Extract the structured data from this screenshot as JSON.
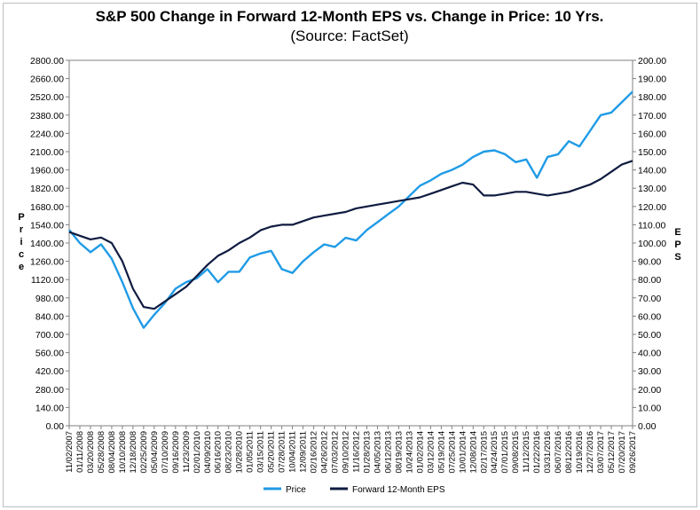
{
  "chart_data": {
    "type": "line",
    "title": "S&P 500 Change in Forward 12-Month EPS vs. Change in Price: 10 Yrs.",
    "subtitle": "(Source: FactSet)",
    "ylabel": "Price",
    "y2label": "EPS",
    "ylim": [
      0,
      2800
    ],
    "y2lim": [
      0,
      200
    ],
    "y_ticks": [
      "0.00",
      "140.00",
      "280.00",
      "420.00",
      "560.00",
      "700.00",
      "840.00",
      "980.00",
      "1120.00",
      "1260.00",
      "1400.00",
      "1540.00",
      "1680.00",
      "1820.00",
      "1960.00",
      "2100.00",
      "2240.00",
      "2380.00",
      "2520.00",
      "2660.00",
      "2800.00"
    ],
    "y2_ticks": [
      "0.00",
      "10.00",
      "20.00",
      "30.00",
      "40.00",
      "50.00",
      "60.00",
      "70.00",
      "80.00",
      "90.00",
      "100.00",
      "110.00",
      "120.00",
      "130.00",
      "140.00",
      "150.00",
      "160.00",
      "170.00",
      "180.00",
      "190.00",
      "200.00"
    ],
    "x_tick_labels": [
      "11/02/2007",
      "01/11/2008",
      "03/20/2008",
      "05/28/2008",
      "08/04/2008",
      "10/10/2008",
      "12/18/2008",
      "02/25/2009",
      "05/04/2009",
      "07/10/2009",
      "09/16/2009",
      "11/23/2009",
      "02/01/2010",
      "04/09/2010",
      "06/16/2010",
      "08/23/2010",
      "10/28/2010",
      "01/05/2011",
      "03/15/2011",
      "05/20/2011",
      "07/28/2011",
      "10/04/2011",
      "12/09/2011",
      "02/16/2012",
      "04/26/2012",
      "07/03/2012",
      "09/10/2012",
      "11/16/2012",
      "01/28/2013",
      "04/05/2013",
      "06/12/2013",
      "08/19/2013",
      "10/24/2013",
      "01/02/2014",
      "03/12/2014",
      "05/19/2014",
      "07/25/2014",
      "10/01/2014",
      "12/08/2014",
      "02/17/2015",
      "04/24/2015",
      "07/01/2015",
      "09/08/2015",
      "11/12/2015",
      "01/22/2016",
      "03/31/2016",
      "06/07/2016",
      "08/12/2016",
      "10/19/2016",
      "12/27/2016",
      "03/07/2017",
      "05/12/2017",
      "07/20/2017",
      "09/26/2017"
    ],
    "series": [
      {
        "name": "Price",
        "axis": "left",
        "color": "#1f9be6",
        "x": [
          0,
          1,
          2,
          3,
          4,
          5,
          6,
          7,
          8,
          9,
          10,
          11,
          12,
          13,
          14,
          15,
          16,
          17,
          18,
          19,
          20,
          21,
          22,
          23,
          24,
          25,
          26,
          27,
          28,
          29,
          30,
          31,
          32,
          33,
          34,
          35,
          36,
          37,
          38,
          39,
          40,
          41,
          42,
          43,
          44,
          45,
          46,
          47,
          48,
          49,
          50,
          51,
          52,
          53
        ],
        "values": [
          1500,
          1400,
          1330,
          1390,
          1280,
          1100,
          900,
          750,
          850,
          940,
          1050,
          1100,
          1130,
          1200,
          1100,
          1180,
          1180,
          1290,
          1320,
          1340,
          1200,
          1170,
          1260,
          1330,
          1390,
          1370,
          1440,
          1420,
          1500,
          1560,
          1620,
          1680,
          1760,
          1840,
          1880,
          1930,
          1960,
          2000,
          2060,
          2100,
          2110,
          2080,
          2020,
          2040,
          1900,
          2060,
          2080,
          2180,
          2140,
          2260,
          2380,
          2400,
          2480,
          2560
        ]
      },
      {
        "name": "Forward 12-Month EPS",
        "axis": "right",
        "color": "#0f1b40",
        "x": [
          0,
          1,
          2,
          3,
          4,
          5,
          6,
          7,
          8,
          9,
          10,
          11,
          12,
          13,
          14,
          15,
          16,
          17,
          18,
          19,
          20,
          21,
          22,
          23,
          24,
          25,
          26,
          27,
          28,
          29,
          30,
          31,
          32,
          33,
          34,
          35,
          36,
          37,
          38,
          39,
          40,
          41,
          42,
          43,
          44,
          45,
          46,
          47,
          48,
          49,
          50,
          51,
          52,
          53
        ],
        "values": [
          106,
          104,
          102,
          103,
          100,
          90,
          75,
          65,
          64,
          68,
          72,
          76,
          82,
          88,
          93,
          96,
          100,
          103,
          107,
          109,
          110,
          110,
          112,
          114,
          115,
          116,
          117,
          119,
          120,
          121,
          122,
          123,
          124,
          125,
          127,
          129,
          131,
          133,
          132,
          126,
          126,
          127,
          128,
          128,
          127,
          126,
          127,
          128,
          130,
          132,
          135,
          139,
          143,
          145
        ]
      }
    ],
    "legend": [
      "Price",
      "Forward 12-Month EPS"
    ],
    "legend_position": "bottom",
    "grid": false
  }
}
